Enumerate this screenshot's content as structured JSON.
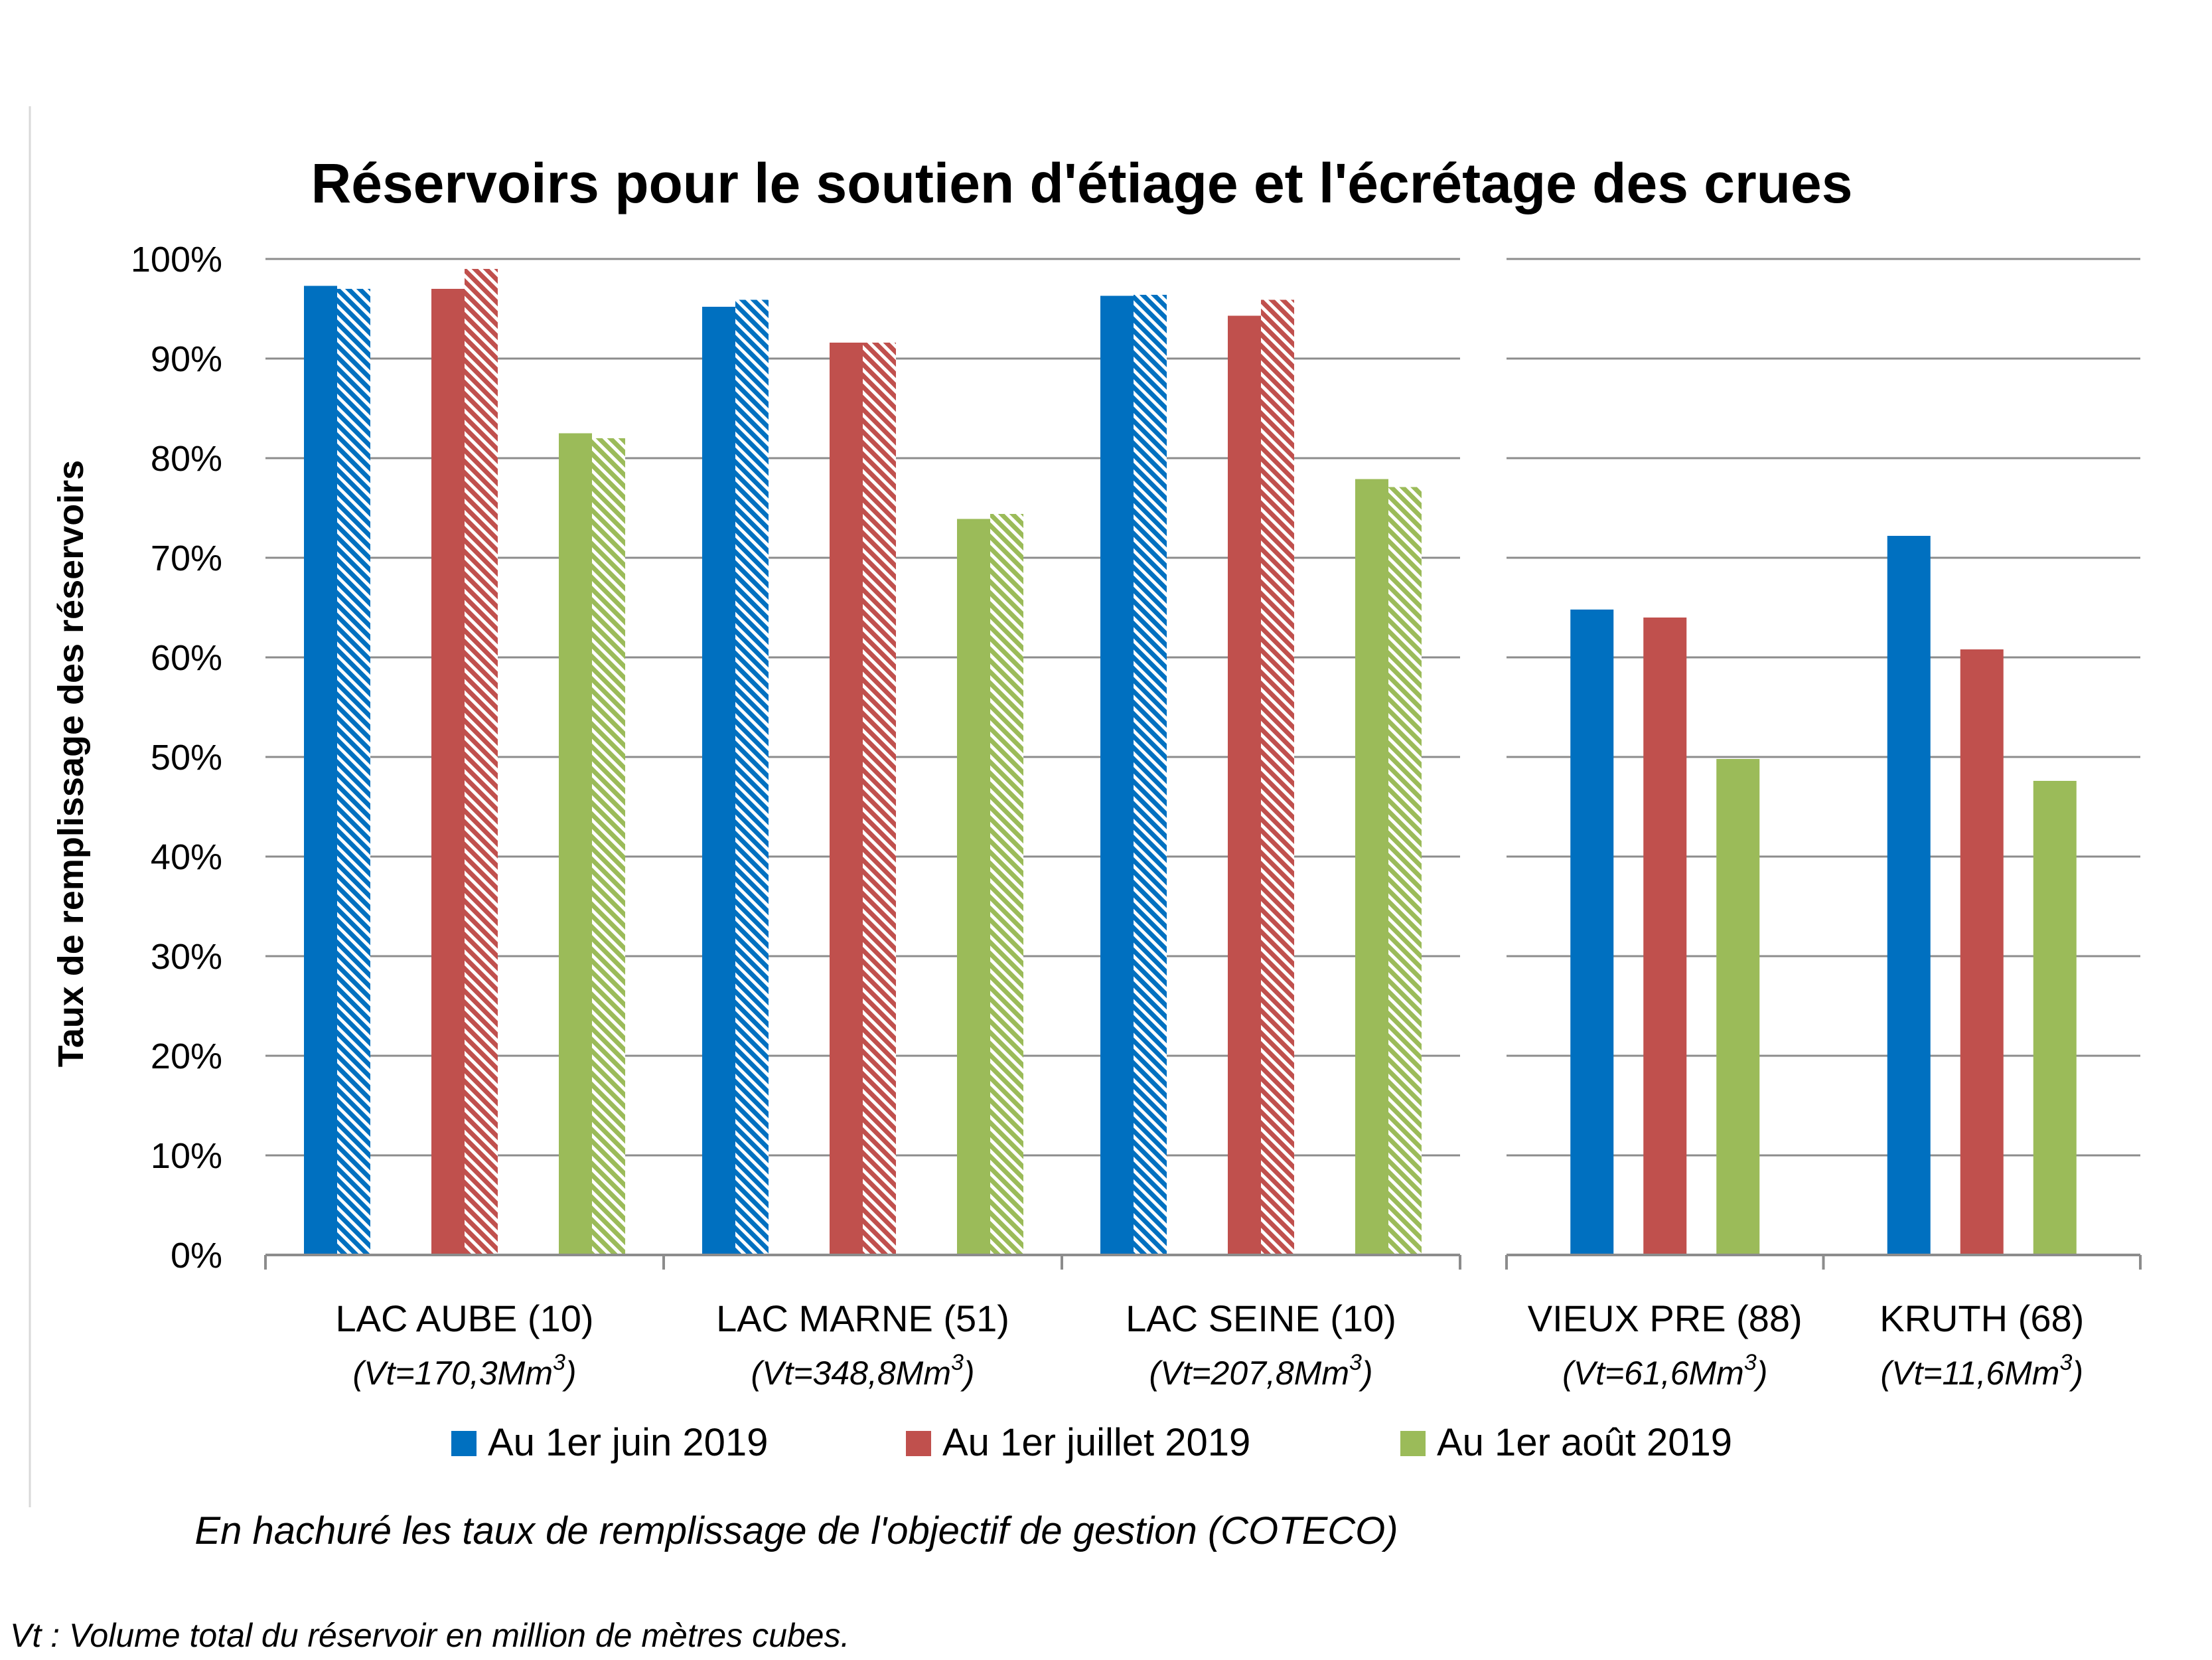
{
  "chart_data": {
    "type": "bar",
    "title": "Réservoirs pour le soutien d'étiage et l'écrétage des crues",
    "ylabel": "Taux de remplissage des réservoirs",
    "ylim": [
      0,
      100
    ],
    "y_ticks": [
      "0%",
      "10%",
      "20%",
      "30%",
      "40%",
      "50%",
      "60%",
      "70%",
      "80%",
      "90%",
      "100%"
    ],
    "grid": true,
    "legend_position": "bottom",
    "colors": {
      "june": "#0070C0",
      "july": "#C0504D",
      "august": "#9BBB59"
    },
    "series": [
      {
        "name": "Au 1er juin 2019",
        "color": "#0070C0"
      },
      {
        "name": "Au 1er juillet 2019",
        "color": "#C0504D"
      },
      {
        "name": "Au 1er août 2019",
        "color": "#9BBB59"
      }
    ],
    "panels": [
      {
        "categories": [
          {
            "label": "LAC AUBE (10)",
            "volume": "(Vt=170,3Mm",
            "volume_sup": "3",
            "volume_end": ")",
            "actual": [
              97.3,
              97.0,
              82.5
            ],
            "objective": [
              97.0,
              99.0,
              82.0
            ]
          },
          {
            "label": "LAC MARNE (51)",
            "volume": "(Vt=348,8Mm",
            "volume_sup": "3",
            "volume_end": ")",
            "actual": [
              95.2,
              91.6,
              73.9
            ],
            "objective": [
              95.9,
              91.6,
              74.4
            ]
          },
          {
            "label": "LAC SEINE (10)",
            "volume": "(Vt=207,8Mm",
            "volume_sup": "3",
            "volume_end": ")",
            "actual": [
              96.3,
              94.3,
              77.9
            ],
            "objective": [
              96.4,
              95.9,
              77.1
            ]
          }
        ]
      },
      {
        "categories": [
          {
            "label": "VIEUX PRE (88)",
            "volume": "(Vt=61,6Mm",
            "volume_sup": "3",
            "volume_end": ")",
            "actual": [
              64.8,
              64.0,
              49.8
            ]
          },
          {
            "label": "KRUTH (68)",
            "volume": "(Vt=11,6Mm",
            "volume_sup": "3",
            "volume_end": ")",
            "actual": [
              72.2,
              60.8,
              47.6
            ]
          }
        ]
      }
    ]
  },
  "notes": {
    "hatch_note": "En hachuré les taux de remplissage de l'objectif de gestion (COTECO)",
    "footnote": "Vt : Volume total du réservoir en million de mètres cubes."
  }
}
